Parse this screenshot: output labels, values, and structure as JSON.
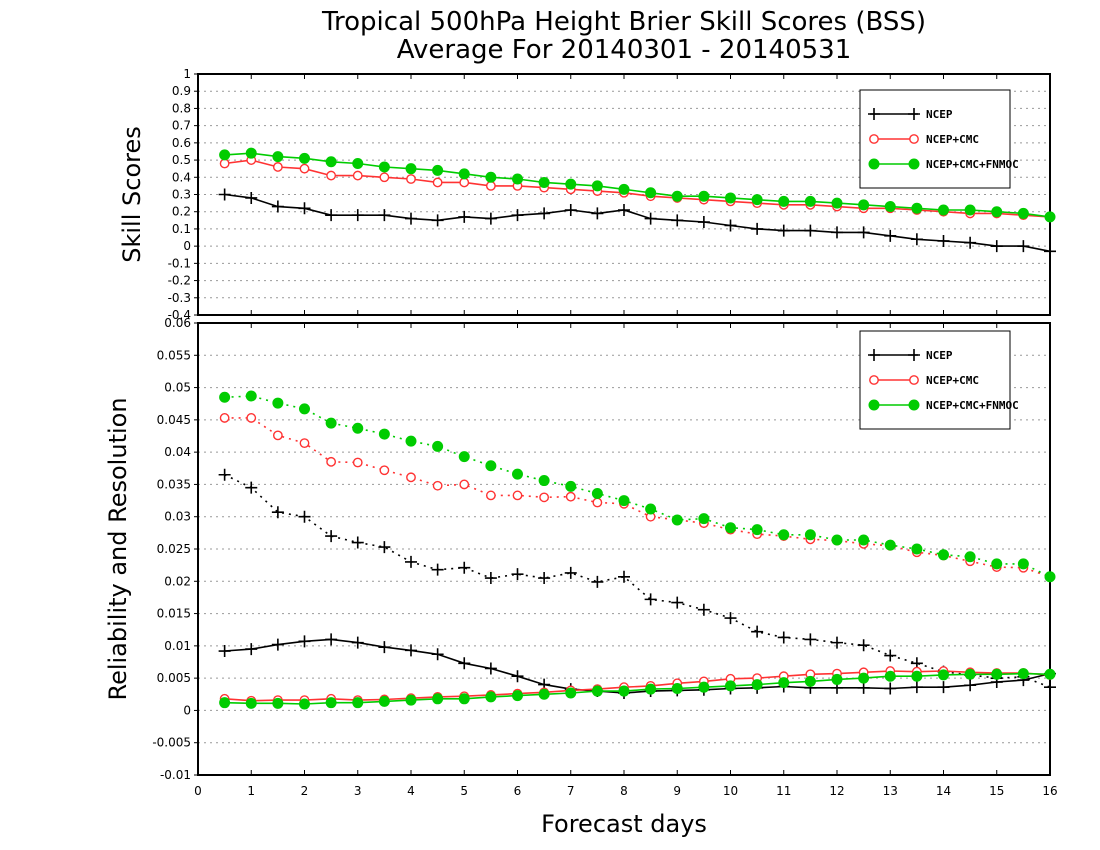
{
  "titles": {
    "line1": "Tropical 500hPa Height Brier Skill Scores (BSS)",
    "line2": "Average For 20140301 - 20140531"
  },
  "xlabel": "Forecast days",
  "colors": {
    "ncep": "#000000",
    "ncep_cmc": "#ff3333",
    "ncep_cmc_fnmoc": "#00cc00"
  },
  "chart_data": [
    {
      "type": "line",
      "ylabel": "Skill Scores",
      "xlim": [
        0,
        16
      ],
      "ylim": [
        -0.4,
        1
      ],
      "xticks": [
        "0",
        "1",
        "2",
        "3",
        "4",
        "5",
        "6",
        "7",
        "8",
        "9",
        "10",
        "11",
        "12",
        "13",
        "14",
        "15",
        "16"
      ],
      "yticks": [
        "-0.4",
        "-0.3",
        "-0.2",
        "-0.1",
        "0",
        "0.1",
        "0.2",
        "0.3",
        "0.4",
        "0.5",
        "0.6",
        "0.7",
        "0.8",
        "0.9",
        "1"
      ],
      "grid": true,
      "legend_position": "top-right",
      "x": [
        0.5,
        1,
        1.5,
        2,
        2.5,
        3,
        3.5,
        4,
        4.5,
        5,
        5.5,
        6,
        6.5,
        7,
        7.5,
        8,
        8.5,
        9,
        9.5,
        10,
        10.5,
        11,
        11.5,
        12,
        12.5,
        13,
        13.5,
        14,
        14.5,
        15,
        15.5,
        16
      ],
      "series": [
        {
          "name": "NCEP",
          "marker": "plus",
          "style": "solid",
          "color": "#000000",
          "values": [
            0.3,
            0.28,
            0.23,
            0.22,
            0.18,
            0.18,
            0.18,
            0.16,
            0.15,
            0.17,
            0.16,
            0.18,
            0.19,
            0.21,
            0.19,
            0.21,
            0.16,
            0.15,
            0.14,
            0.12,
            0.1,
            0.09,
            0.09,
            0.08,
            0.08,
            0.06,
            0.04,
            0.03,
            0.02,
            0.0,
            0.0,
            -0.03
          ]
        },
        {
          "name": "NCEP+CMC",
          "marker": "open-circle",
          "style": "solid",
          "color": "#ff3333",
          "values": [
            0.48,
            0.5,
            0.46,
            0.45,
            0.41,
            0.41,
            0.4,
            0.39,
            0.37,
            0.37,
            0.35,
            0.35,
            0.34,
            0.33,
            0.32,
            0.31,
            0.29,
            0.28,
            0.27,
            0.26,
            0.25,
            0.24,
            0.24,
            0.23,
            0.22,
            0.22,
            0.21,
            0.2,
            0.19,
            0.19,
            0.18,
            0.17
          ]
        },
        {
          "name": "NCEP+CMC+FNMOC",
          "marker": "filled-circle",
          "style": "solid",
          "color": "#00cc00",
          "values": [
            0.53,
            0.54,
            0.52,
            0.51,
            0.49,
            0.48,
            0.46,
            0.45,
            0.44,
            0.42,
            0.4,
            0.39,
            0.37,
            0.36,
            0.35,
            0.33,
            0.31,
            0.29,
            0.29,
            0.28,
            0.27,
            0.26,
            0.26,
            0.25,
            0.24,
            0.23,
            0.22,
            0.21,
            0.21,
            0.2,
            0.19,
            0.17
          ]
        }
      ]
    },
    {
      "type": "line",
      "ylabel": "Reliability and Resolution",
      "xlim": [
        0,
        16
      ],
      "ylim": [
        -0.01,
        0.06
      ],
      "xticks": [
        "0",
        "1",
        "2",
        "3",
        "4",
        "5",
        "6",
        "7",
        "8",
        "9",
        "10",
        "11",
        "12",
        "13",
        "14",
        "15",
        "16"
      ],
      "yticks": [
        "-0.01",
        "-0.005",
        "0",
        "0.005",
        "0.01",
        "0.015",
        "0.02",
        "0.025",
        "0.03",
        "0.035",
        "0.04",
        "0.045",
        "0.05",
        "0.055",
        "0.06"
      ],
      "grid": true,
      "legend_position": "top-right",
      "x": [
        0.5,
        1,
        1.5,
        2,
        2.5,
        3,
        3.5,
        4,
        4.5,
        5,
        5.5,
        6,
        6.5,
        7,
        7.5,
        8,
        8.5,
        9,
        9.5,
        10,
        10.5,
        11,
        11.5,
        12,
        12.5,
        13,
        13.5,
        14,
        14.5,
        15,
        15.5,
        16
      ],
      "series": [
        {
          "name": "NCEP",
          "marker": "plus",
          "style": "dotted",
          "color": "#000000",
          "values": [
            0.0365,
            0.0345,
            0.0307,
            0.03,
            0.027,
            0.026,
            0.0253,
            0.023,
            0.0218,
            0.0221,
            0.0205,
            0.0211,
            0.0205,
            0.0213,
            0.0199,
            0.0207,
            0.0172,
            0.0167,
            0.0156,
            0.0143,
            0.0122,
            0.0113,
            0.011,
            0.0105,
            0.0101,
            0.0085,
            0.0073,
            0.006,
            0.0055,
            0.005,
            0.0052,
            0.0036
          ]
        },
        {
          "name": "NCEP+CMC",
          "marker": "open-circle",
          "style": "dotted",
          "color": "#ff3333",
          "values": [
            0.0453,
            0.0453,
            0.0426,
            0.0414,
            0.0385,
            0.0384,
            0.0372,
            0.0361,
            0.0348,
            0.035,
            0.0333,
            0.0333,
            0.033,
            0.0331,
            0.0322,
            0.032,
            0.03,
            0.0295,
            0.029,
            0.028,
            0.0273,
            0.027,
            0.0265,
            0.0263,
            0.0258,
            0.0255,
            0.0245,
            0.024,
            0.0231,
            0.0222,
            0.0221,
            0.0207
          ]
        },
        {
          "name": "NCEP+CMC+FNMOC",
          "marker": "filled-circle",
          "style": "dotted",
          "color": "#00cc00",
          "values": [
            0.0485,
            0.0487,
            0.0476,
            0.0467,
            0.0445,
            0.0437,
            0.0428,
            0.0417,
            0.0409,
            0.0393,
            0.0379,
            0.0366,
            0.0356,
            0.0347,
            0.0336,
            0.0325,
            0.0312,
            0.0295,
            0.0297,
            0.0283,
            0.028,
            0.0272,
            0.0272,
            0.0264,
            0.0264,
            0.0256,
            0.025,
            0.0241,
            0.0238,
            0.0227,
            0.0227,
            0.0207
          ]
        },
        {
          "name": "",
          "marker": "plus",
          "style": "solid",
          "color": "#000000",
          "values": [
            0.0092,
            0.0095,
            0.0102,
            0.0107,
            0.011,
            0.0105,
            0.0098,
            0.0093,
            0.0087,
            0.0073,
            0.0065,
            0.0053,
            0.004,
            0.0033,
            0.003,
            0.0027,
            0.003,
            0.0031,
            0.0032,
            0.0034,
            0.0035,
            0.0037,
            0.0035,
            0.0035,
            0.0035,
            0.0034,
            0.0036,
            0.0036,
            0.0039,
            0.0044,
            0.0047,
            0.0057
          ]
        },
        {
          "name": "",
          "marker": "open-circle",
          "style": "solid",
          "color": "#ff3333",
          "values": [
            0.0018,
            0.0015,
            0.0016,
            0.0016,
            0.0018,
            0.0016,
            0.0017,
            0.0019,
            0.0021,
            0.0022,
            0.0024,
            0.0026,
            0.0028,
            0.0031,
            0.0033,
            0.0036,
            0.0038,
            0.0042,
            0.0045,
            0.0049,
            0.005,
            0.0053,
            0.0056,
            0.0057,
            0.0059,
            0.0061,
            0.006,
            0.0061,
            0.0059,
            0.0058,
            0.0058,
            0.0055
          ]
        },
        {
          "name": "",
          "marker": "filled-circle",
          "style": "solid",
          "color": "#00cc00",
          "values": [
            0.0012,
            0.0011,
            0.0011,
            0.001,
            0.0012,
            0.0012,
            0.0014,
            0.0016,
            0.0018,
            0.0018,
            0.0021,
            0.0023,
            0.0025,
            0.0027,
            0.003,
            0.003,
            0.0033,
            0.0034,
            0.0036,
            0.0038,
            0.004,
            0.0043,
            0.0045,
            0.0048,
            0.005,
            0.0053,
            0.0053,
            0.0055,
            0.0056,
            0.0056,
            0.0057,
            0.0056
          ]
        }
      ]
    }
  ]
}
